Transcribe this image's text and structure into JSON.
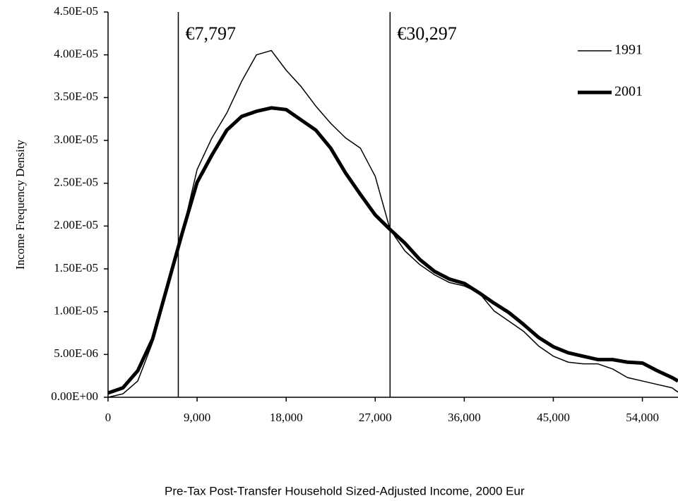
{
  "chart_data": {
    "type": "line",
    "y_label": "Income Frequency Density",
    "x_label": "Pre-Tax Post-Transfer Household Sized-Adjusted Income, 2000 Eur",
    "annotations": [
      "€7,797",
      "€30,297"
    ],
    "vlines": [
      7100,
      28500
    ],
    "xlim": [
      0,
      57600
    ],
    "ylim": [
      0,
      4.5e-05
    ],
    "xticks": [
      0,
      {
        "value": 9000,
        "label": "9,000"
      },
      {
        "value": 18000,
        "label": "18,000"
      },
      {
        "value": 27000,
        "label": "27,000"
      },
      {
        "value": 36000,
        "label": "36,000"
      },
      {
        "value": 45000,
        "label": "45,000"
      },
      {
        "value": 54000,
        "label": "54,000"
      }
    ],
    "yticks": [
      {
        "value": 0,
        "label": "0.00E+00"
      },
      {
        "value": 5e-06,
        "label": "5.00E-06"
      },
      {
        "value": 1e-05,
        "label": "1.00E-05"
      },
      {
        "value": 1.5e-05,
        "label": "1.50E-05"
      },
      {
        "value": 2e-05,
        "label": "2.00E-05"
      },
      {
        "value": 2.5e-05,
        "label": "2.50E-05"
      },
      {
        "value": 3e-05,
        "label": "3.00E-05"
      },
      {
        "value": 3.5e-05,
        "label": "3.50E-05"
      },
      {
        "value": 4e-05,
        "label": "4.00E-05"
      },
      {
        "value": 4.5e-05,
        "label": "4.50E-05"
      }
    ],
    "x": [
      0,
      1500,
      3000,
      4500,
      6000,
      7500,
      9000,
      10500,
      12000,
      13500,
      15000,
      16500,
      18000,
      19500,
      21000,
      22500,
      24000,
      25500,
      27000,
      28500,
      30000,
      31500,
      33000,
      34500,
      36000,
      37500,
      39000,
      40500,
      42000,
      43500,
      45000,
      46500,
      48000,
      49500,
      51000,
      52500,
      54000,
      55500,
      57000,
      57600
    ],
    "series": [
      {
        "name": "1991",
        "color": "#000000",
        "linewidth": 1.5,
        "values": [
          0,
          4e-07,
          1.9e-06,
          6.4e-06,
          1.34e-05,
          1.92e-05,
          2.66e-05,
          3.03e-05,
          3.32e-05,
          3.69e-05,
          4e-05,
          4.05e-05,
          3.82e-05,
          3.63e-05,
          3.4e-05,
          3.2e-05,
          3.03e-05,
          2.91e-05,
          2.58e-05,
          1.96e-05,
          1.71e-05,
          1.55e-05,
          1.43e-05,
          1.34e-05,
          1.3e-05,
          1.22e-05,
          1.01e-05,
          8.9e-06,
          7.7e-06,
          6e-06,
          4.8e-06,
          4.1e-06,
          3.9e-06,
          3.9e-06,
          3.3e-06,
          2.3e-06,
          1.9e-06,
          1.5e-06,
          1.1e-06,
          6e-07
        ]
      },
      {
        "name": "2001",
        "color": "#000000",
        "linewidth": 5,
        "values": [
          5e-07,
          1.1e-06,
          3.1e-06,
          6.8e-06,
          1.3e-05,
          1.92e-05,
          2.51e-05,
          2.83e-05,
          3.12e-05,
          3.28e-05,
          3.34e-05,
          3.38e-05,
          3.36e-05,
          3.24e-05,
          3.12e-05,
          2.91e-05,
          2.62e-05,
          2.37e-05,
          2.13e-05,
          1.96e-05,
          1.8e-05,
          1.61e-05,
          1.47e-05,
          1.38e-05,
          1.33e-05,
          1.22e-05,
          1.1e-05,
          9.9e-06,
          8.5e-06,
          7e-06,
          5.9e-06,
          5.2e-06,
          4.8e-06,
          4.4e-06,
          4.4e-06,
          4.1e-06,
          4e-06,
          3.1e-06,
          2.3e-06,
          1.9e-06
        ]
      }
    ]
  }
}
